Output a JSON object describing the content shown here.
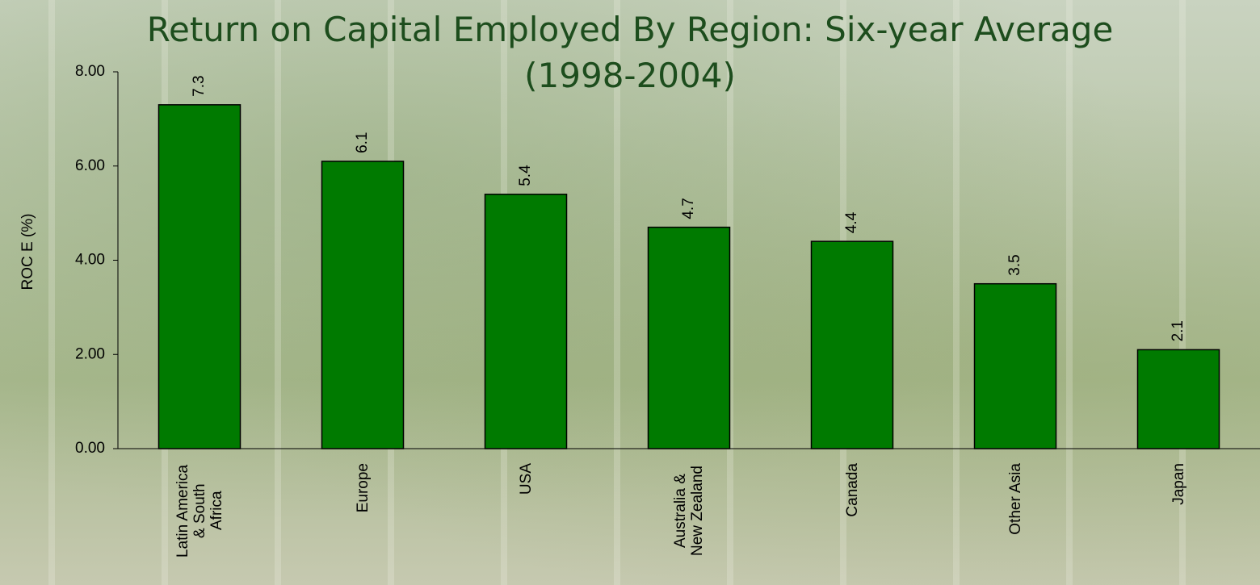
{
  "chart_data": {
    "type": "bar",
    "title": "Return on Capital Employed By Region: Six-year Average (1998-2004)",
    "y_label": "ROC E (%)",
    "categories": [
      "Latin America & South Africa",
      "Europe",
      "USA",
      "Australia & New Zealand",
      "Canada",
      "Other Asia",
      "Japan"
    ],
    "values": [
      7.3,
      6.1,
      5.4,
      4.7,
      4.4,
      3.5,
      2.1
    ],
    "color": "#007a00",
    "ylim": [
      0,
      8
    ],
    "yticks": [
      {
        "value": 0,
        "label": "0.00"
      },
      {
        "value": 2,
        "label": "2.00"
      },
      {
        "value": 4,
        "label": "4.00"
      },
      {
        "value": 6,
        "label": "6.00"
      },
      {
        "value": 8,
        "label": "8.00"
      }
    ],
    "grid": false
  }
}
